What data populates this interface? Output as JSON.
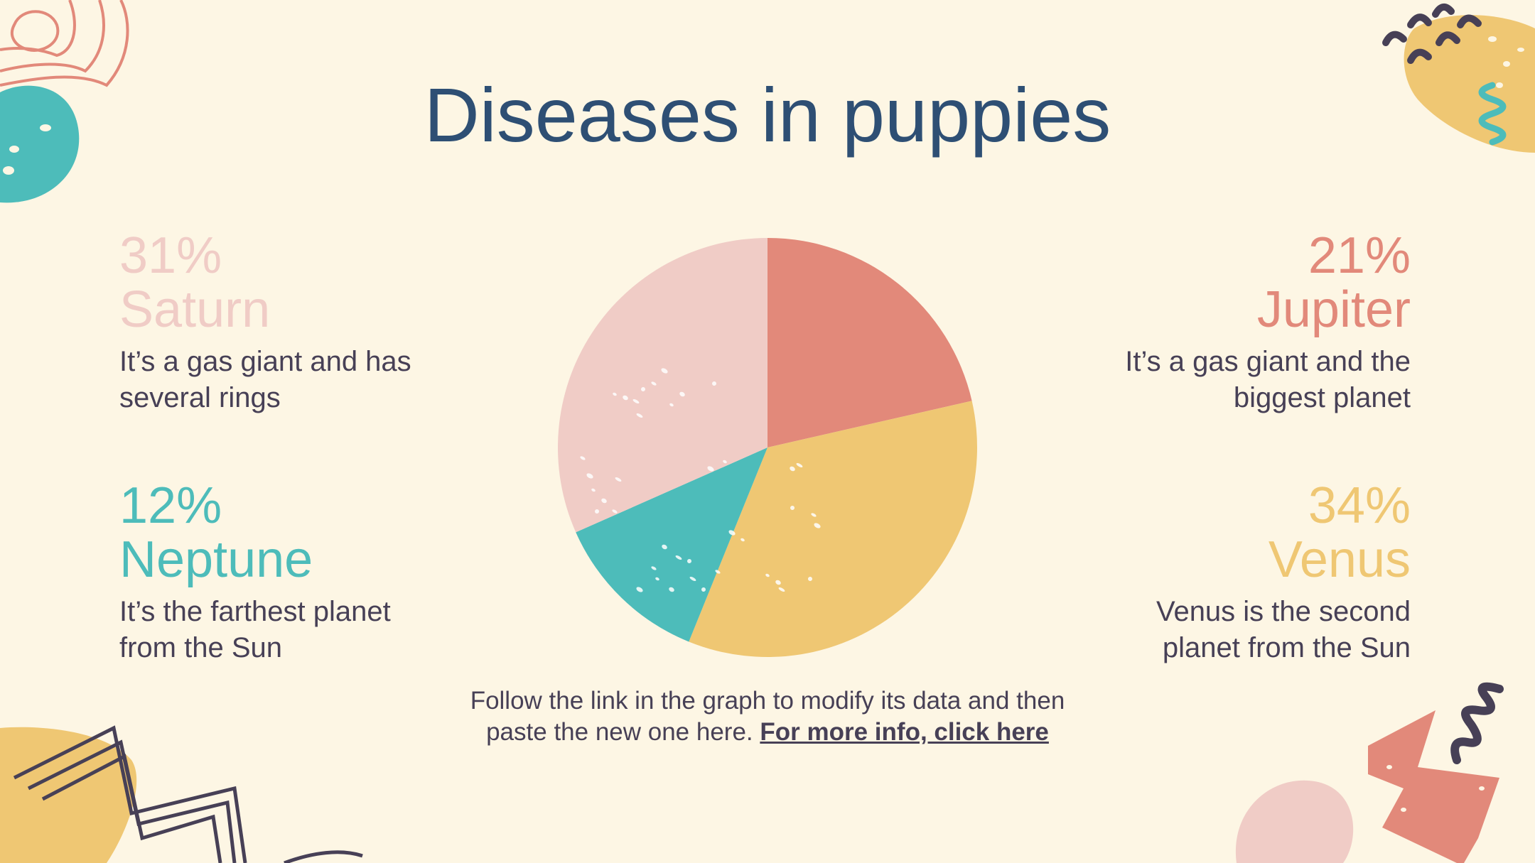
{
  "title": "Diseases in puppies",
  "colors": {
    "background": "#fdf6e4",
    "title": "#2e4f74",
    "body_text": "#474056",
    "saturn": "#f0ccc6",
    "jupiter": "#e2897a",
    "neptune": "#4dbcba",
    "venus": "#efc773"
  },
  "stats": {
    "saturn": {
      "pct": "31%",
      "name": "Saturn",
      "desc_line1": "It’s a gas giant and has",
      "desc_line2": "several rings"
    },
    "jupiter": {
      "pct": "21%",
      "name": "Jupiter",
      "desc_line1": "It’s a gas giant and the",
      "desc_line2": "biggest planet"
    },
    "neptune": {
      "pct": "12%",
      "name": "Neptune",
      "desc_line1": "It’s the farthest planet",
      "desc_line2": "from the Sun"
    },
    "venus": {
      "pct": "34%",
      "name": "Venus",
      "desc_line1": "Venus is the second",
      "desc_line2": "planet from the Sun"
    }
  },
  "footer": {
    "line1": "Follow the link in the graph to modify its data and then",
    "line2": "paste the new one here.",
    "link": "For more info, click here"
  },
  "chart_data": {
    "type": "pie",
    "categories": [
      "Jupiter",
      "Venus",
      "Neptune",
      "Saturn"
    ],
    "values": [
      21,
      34,
      12,
      31
    ],
    "colors": [
      "#e2897a",
      "#efc773",
      "#4dbcba",
      "#f0ccc6"
    ],
    "start": "12 o'clock, clockwise"
  }
}
